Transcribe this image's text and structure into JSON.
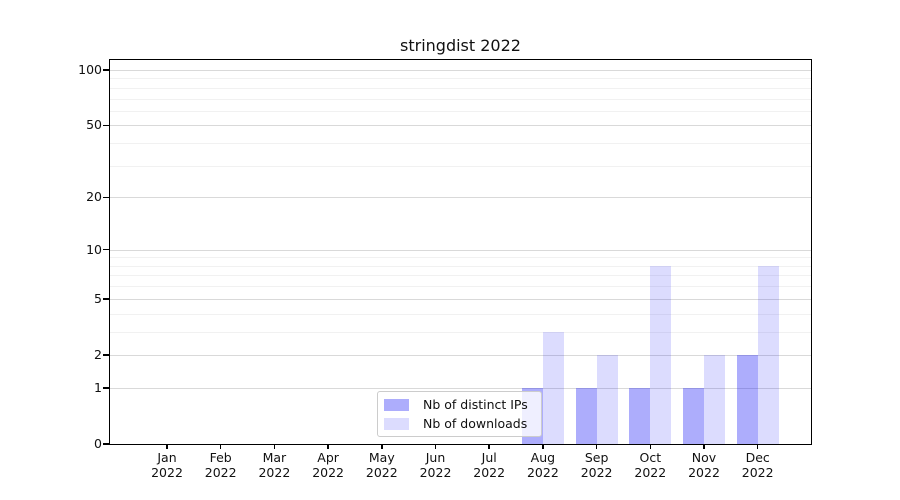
{
  "chart_data": {
    "type": "bar",
    "title": "stringdist 2022",
    "categories": [
      "Jan 2022",
      "Feb 2022",
      "Mar 2022",
      "Apr 2022",
      "May 2022",
      "Jun 2022",
      "Jul 2022",
      "Aug 2022",
      "Sep 2022",
      "Oct 2022",
      "Nov 2022",
      "Dec 2022"
    ],
    "series": [
      {
        "name": "Nb of distinct IPs",
        "color": "rgba(20,20,245,0.35)",
        "values": [
          0,
          0,
          0,
          0,
          0,
          0,
          0,
          1,
          1,
          1,
          1,
          2
        ]
      },
      {
        "name": "Nb of downloads",
        "color": "rgba(20,20,245,0.15)",
        "values": [
          0,
          0,
          0,
          0,
          0,
          0,
          0,
          3,
          2,
          8,
          2,
          8
        ]
      }
    ],
    "xlabel": "",
    "ylabel": "",
    "yscale": "log1p",
    "yticks": [
      0,
      1,
      2,
      5,
      10,
      20,
      50,
      100
    ],
    "minor_yticks": [
      3,
      4,
      6,
      7,
      8,
      9,
      30,
      40,
      60,
      70,
      80,
      90
    ],
    "ylim": [
      0,
      114
    ],
    "grid": "horizontal, major and minor, shown through translucent bars",
    "legend_position": "inside lower-center"
  },
  "colors": {
    "grid_major": "#d9d9d9",
    "grid_minor": "#f1f1f1",
    "frame": "#000000",
    "text": "#111111",
    "legend_border": "#cccccc",
    "background": "#ffffff"
  }
}
